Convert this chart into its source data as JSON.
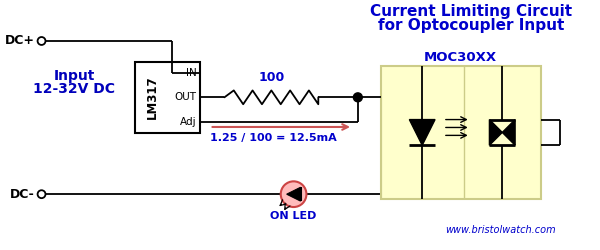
{
  "bg_color": "#ffffff",
  "title_line1": "Current Limiting Circuit",
  "title_line2": "for Optocoupler Input",
  "title_color": "#0000cc",
  "title_fontsize": 11,
  "input_label1": "Input",
  "input_label2": "12-32V DC",
  "input_color": "#0000bb",
  "dcplus_label": "DC+",
  "dcminus_label": "DC-",
  "lm317_label": "LM317",
  "lm317_in": "IN",
  "lm317_out": "OUT",
  "lm317_adj": "Adj",
  "resistor_label": "100",
  "formula_label": "1.25 / 100 = 12.5mA",
  "formula_color": "#0000cc",
  "arrow_color": "#cc5555",
  "moc_label": "MOC30XX",
  "moc_color": "#0000cc",
  "moc_bg": "#ffffcc",
  "moc_border": "#cccc88",
  "led_label": "ON LED",
  "led_color": "#cc4444",
  "website": "www.bristolwatch.com",
  "website_color": "#0000cc",
  "wire_color": "#000000",
  "component_color": "#000000",
  "dc_label_color": "#000000"
}
